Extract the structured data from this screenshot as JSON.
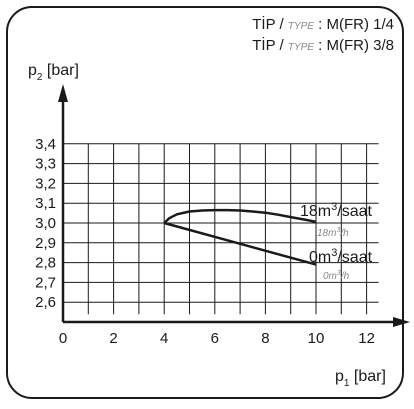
{
  "type_block": {
    "rows": [
      {
        "tr": "TİP",
        "sep": " / ",
        "en": "TYPE",
        "value": " : M(FR) 1/4"
      },
      {
        "tr": "TİP",
        "sep": " / ",
        "en": "TYPE",
        "value": " : M(FR) 3/8"
      }
    ]
  },
  "chart_data": {
    "type": "line",
    "title": "",
    "xlabel": "p1 [bar]",
    "ylabel": "p2 [bar]",
    "xlabel_parts": {
      "base": "p",
      "sub": "1",
      "unit": " [bar]"
    },
    "ylabel_parts": {
      "base": "p",
      "sub": "2",
      "unit": " [bar]"
    },
    "xlim": [
      0,
      12.4
    ],
    "ylim": [
      2.5,
      3.45
    ],
    "x_ticks": [
      0,
      2,
      4,
      6,
      8,
      10,
      12
    ],
    "y_ticks": [
      2.6,
      2.7,
      2.8,
      2.9,
      3.0,
      3.1,
      3.2,
      3.3,
      3.4
    ],
    "y_tick_labels": [
      "2,6",
      "2,7",
      "2,8",
      "2,9",
      "3,0",
      "3,1",
      "3,2",
      "3,3",
      "3,4"
    ],
    "grid_x": [
      0,
      1,
      2,
      3,
      4,
      5,
      6,
      7,
      8,
      9,
      10,
      11,
      12
    ],
    "grid_y": [
      2.6,
      2.7,
      2.8,
      2.9,
      3.0,
      3.1,
      3.2,
      3.3,
      3.4
    ],
    "grid": true,
    "series": [
      {
        "name": "18m³/saat",
        "sublabel": "18m³/h",
        "label_parts": {
          "base": "18m",
          "sup": "3",
          "rest": "/saat"
        },
        "sub_parts": {
          "base": "18m",
          "sup": "3",
          "rest": "/h"
        },
        "x": [
          4.0,
          4.2,
          4.5,
          5.0,
          5.5,
          6.0,
          6.5,
          7.0,
          7.5,
          8.0,
          8.5,
          9.0,
          9.5,
          10.0
        ],
        "y": [
          3.0,
          3.024,
          3.044,
          3.058,
          3.063,
          3.065,
          3.065,
          3.063,
          3.058,
          3.052,
          3.042,
          3.03,
          3.018,
          3.006
        ]
      },
      {
        "name": "0m³/saat",
        "sublabel": "0m³/h",
        "label_parts": {
          "base": "0m",
          "sup": "3",
          "rest": "/saat"
        },
        "sub_parts": {
          "base": "0m",
          "sup": "3",
          "rest": "/h"
        },
        "x": [
          4.0,
          10.0
        ],
        "y": [
          3.0,
          2.79
        ]
      }
    ]
  }
}
